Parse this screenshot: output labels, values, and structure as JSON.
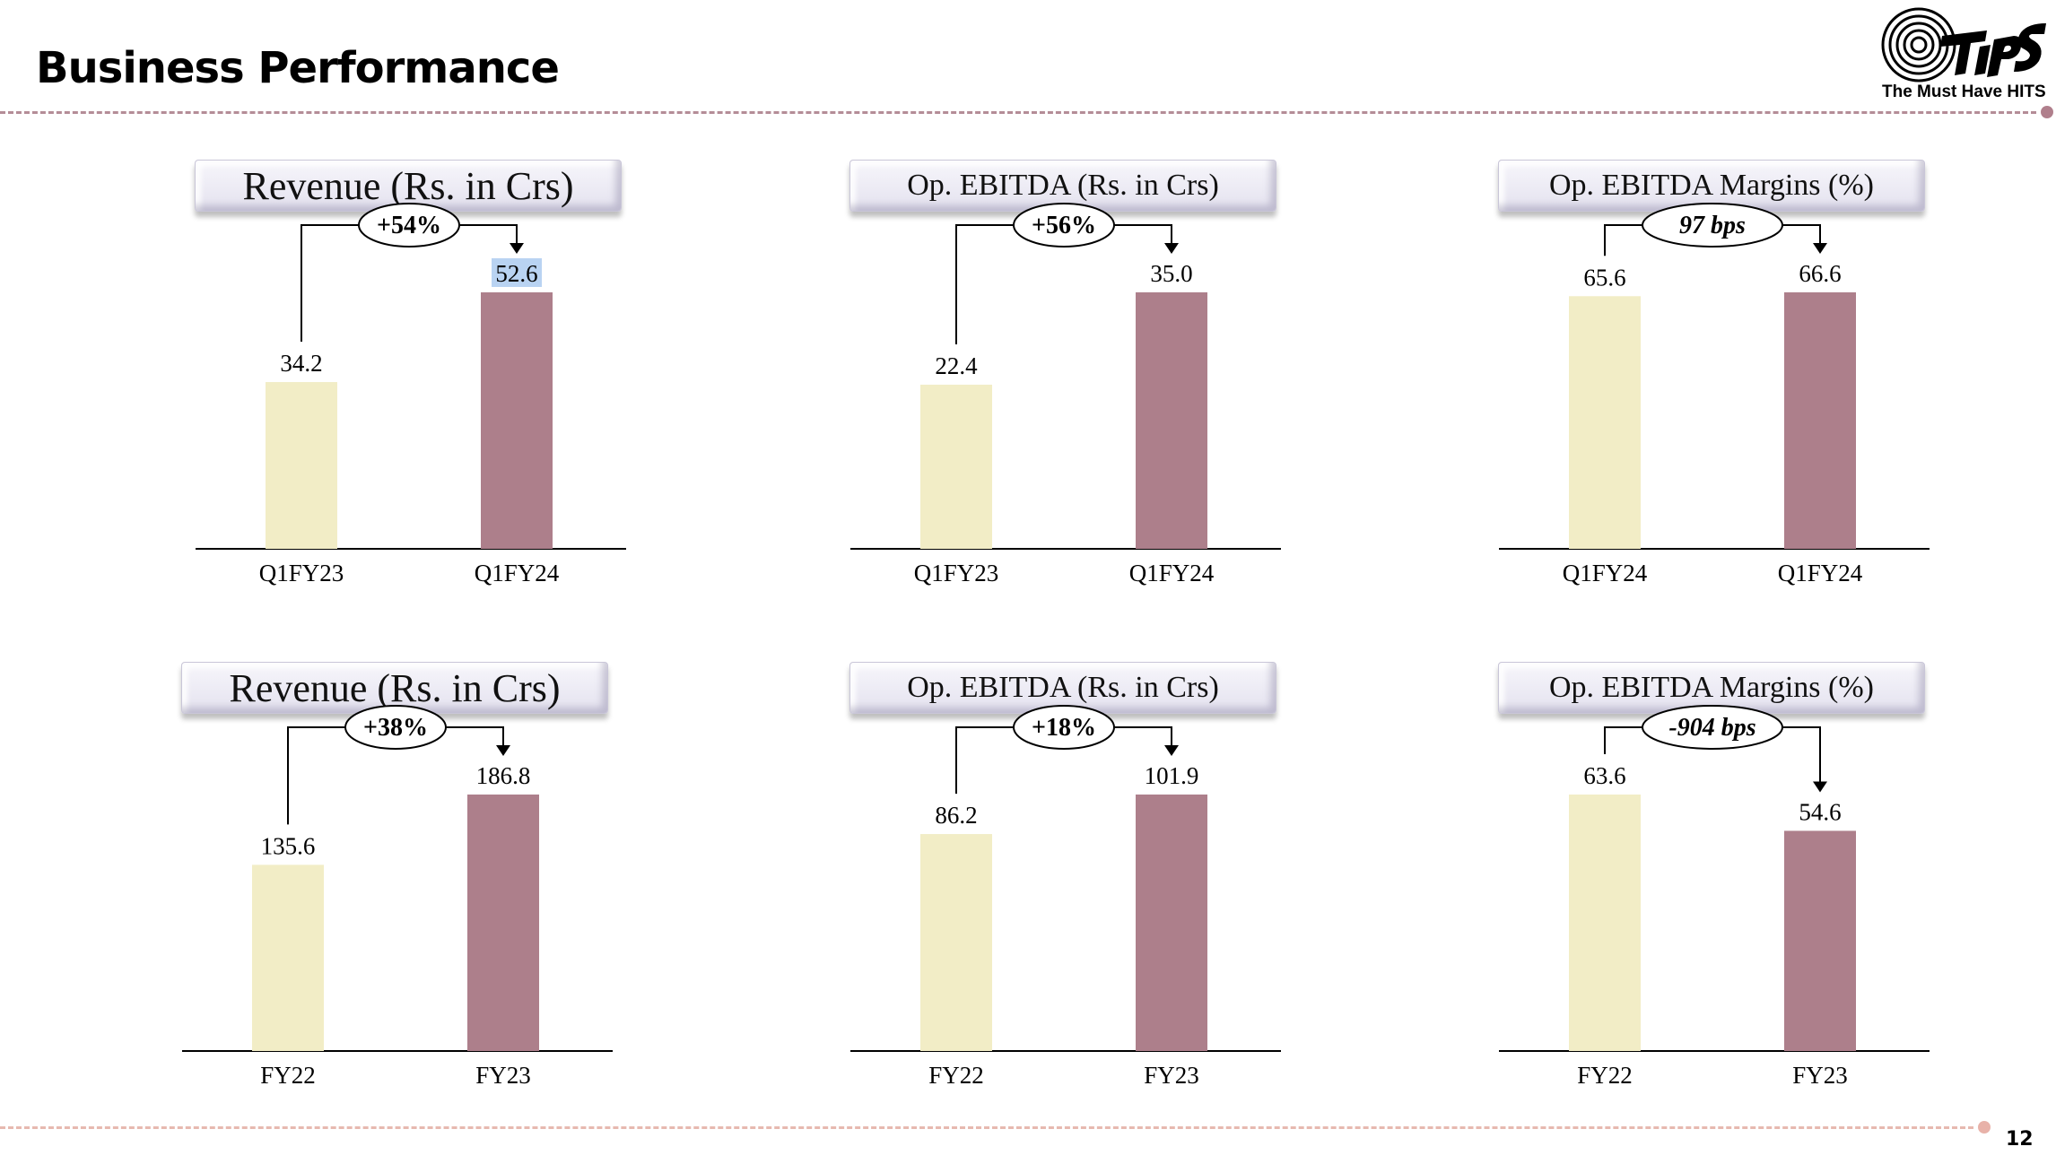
{
  "header": {
    "title": "Business Performance",
    "logo_tagline": "The Must Have HITS"
  },
  "footer": {
    "page_number": "12"
  },
  "colors": {
    "prior": "#f2edc6",
    "current": "#ad7f8b",
    "rule": "#b48d97"
  },
  "chart_data": [
    {
      "type": "bar",
      "title": "Revenue (Rs. in Crs)",
      "categories": [
        "Q1FY23",
        "Q1FY24"
      ],
      "values": [
        34.2,
        52.6
      ],
      "value_labels": [
        "34.2",
        "52.6"
      ],
      "change_label": "+54%",
      "change_italic": false,
      "highlight_index": 1
    },
    {
      "type": "bar",
      "title": "Op. EBITDA (Rs. in Crs)",
      "categories": [
        "Q1FY23",
        "Q1FY24"
      ],
      "values": [
        22.4,
        35.0
      ],
      "value_labels": [
        "22.4",
        "35.0"
      ],
      "change_label": "+56%",
      "change_italic": false
    },
    {
      "type": "bar",
      "title": "Op. EBITDA Margins (%)",
      "categories": [
        "Q1FY24",
        "Q1FY24"
      ],
      "values": [
        65.6,
        66.6
      ],
      "value_labels": [
        "65.6",
        "66.6"
      ],
      "change_label": "97 bps",
      "change_italic": true
    },
    {
      "type": "bar",
      "title": "Revenue (Rs. in Crs)",
      "categories": [
        "FY22",
        "FY23"
      ],
      "values": [
        135.6,
        186.8
      ],
      "value_labels": [
        "135.6",
        "186.8"
      ],
      "change_label": "+38%",
      "change_italic": false
    },
    {
      "type": "bar",
      "title": "Op. EBITDA (Rs. in Crs)",
      "categories": [
        "FY22",
        "FY23"
      ],
      "values": [
        86.2,
        101.9
      ],
      "value_labels": [
        "86.2",
        "101.9"
      ],
      "change_label": "+18%",
      "change_italic": false
    },
    {
      "type": "bar",
      "title": "Op. EBITDA Margins (%)",
      "categories": [
        "FY22",
        "FY23"
      ],
      "values": [
        63.6,
        54.6
      ],
      "value_labels": [
        "63.6",
        "54.6"
      ],
      "change_label": "-904 bps",
      "change_italic": true
    }
  ]
}
